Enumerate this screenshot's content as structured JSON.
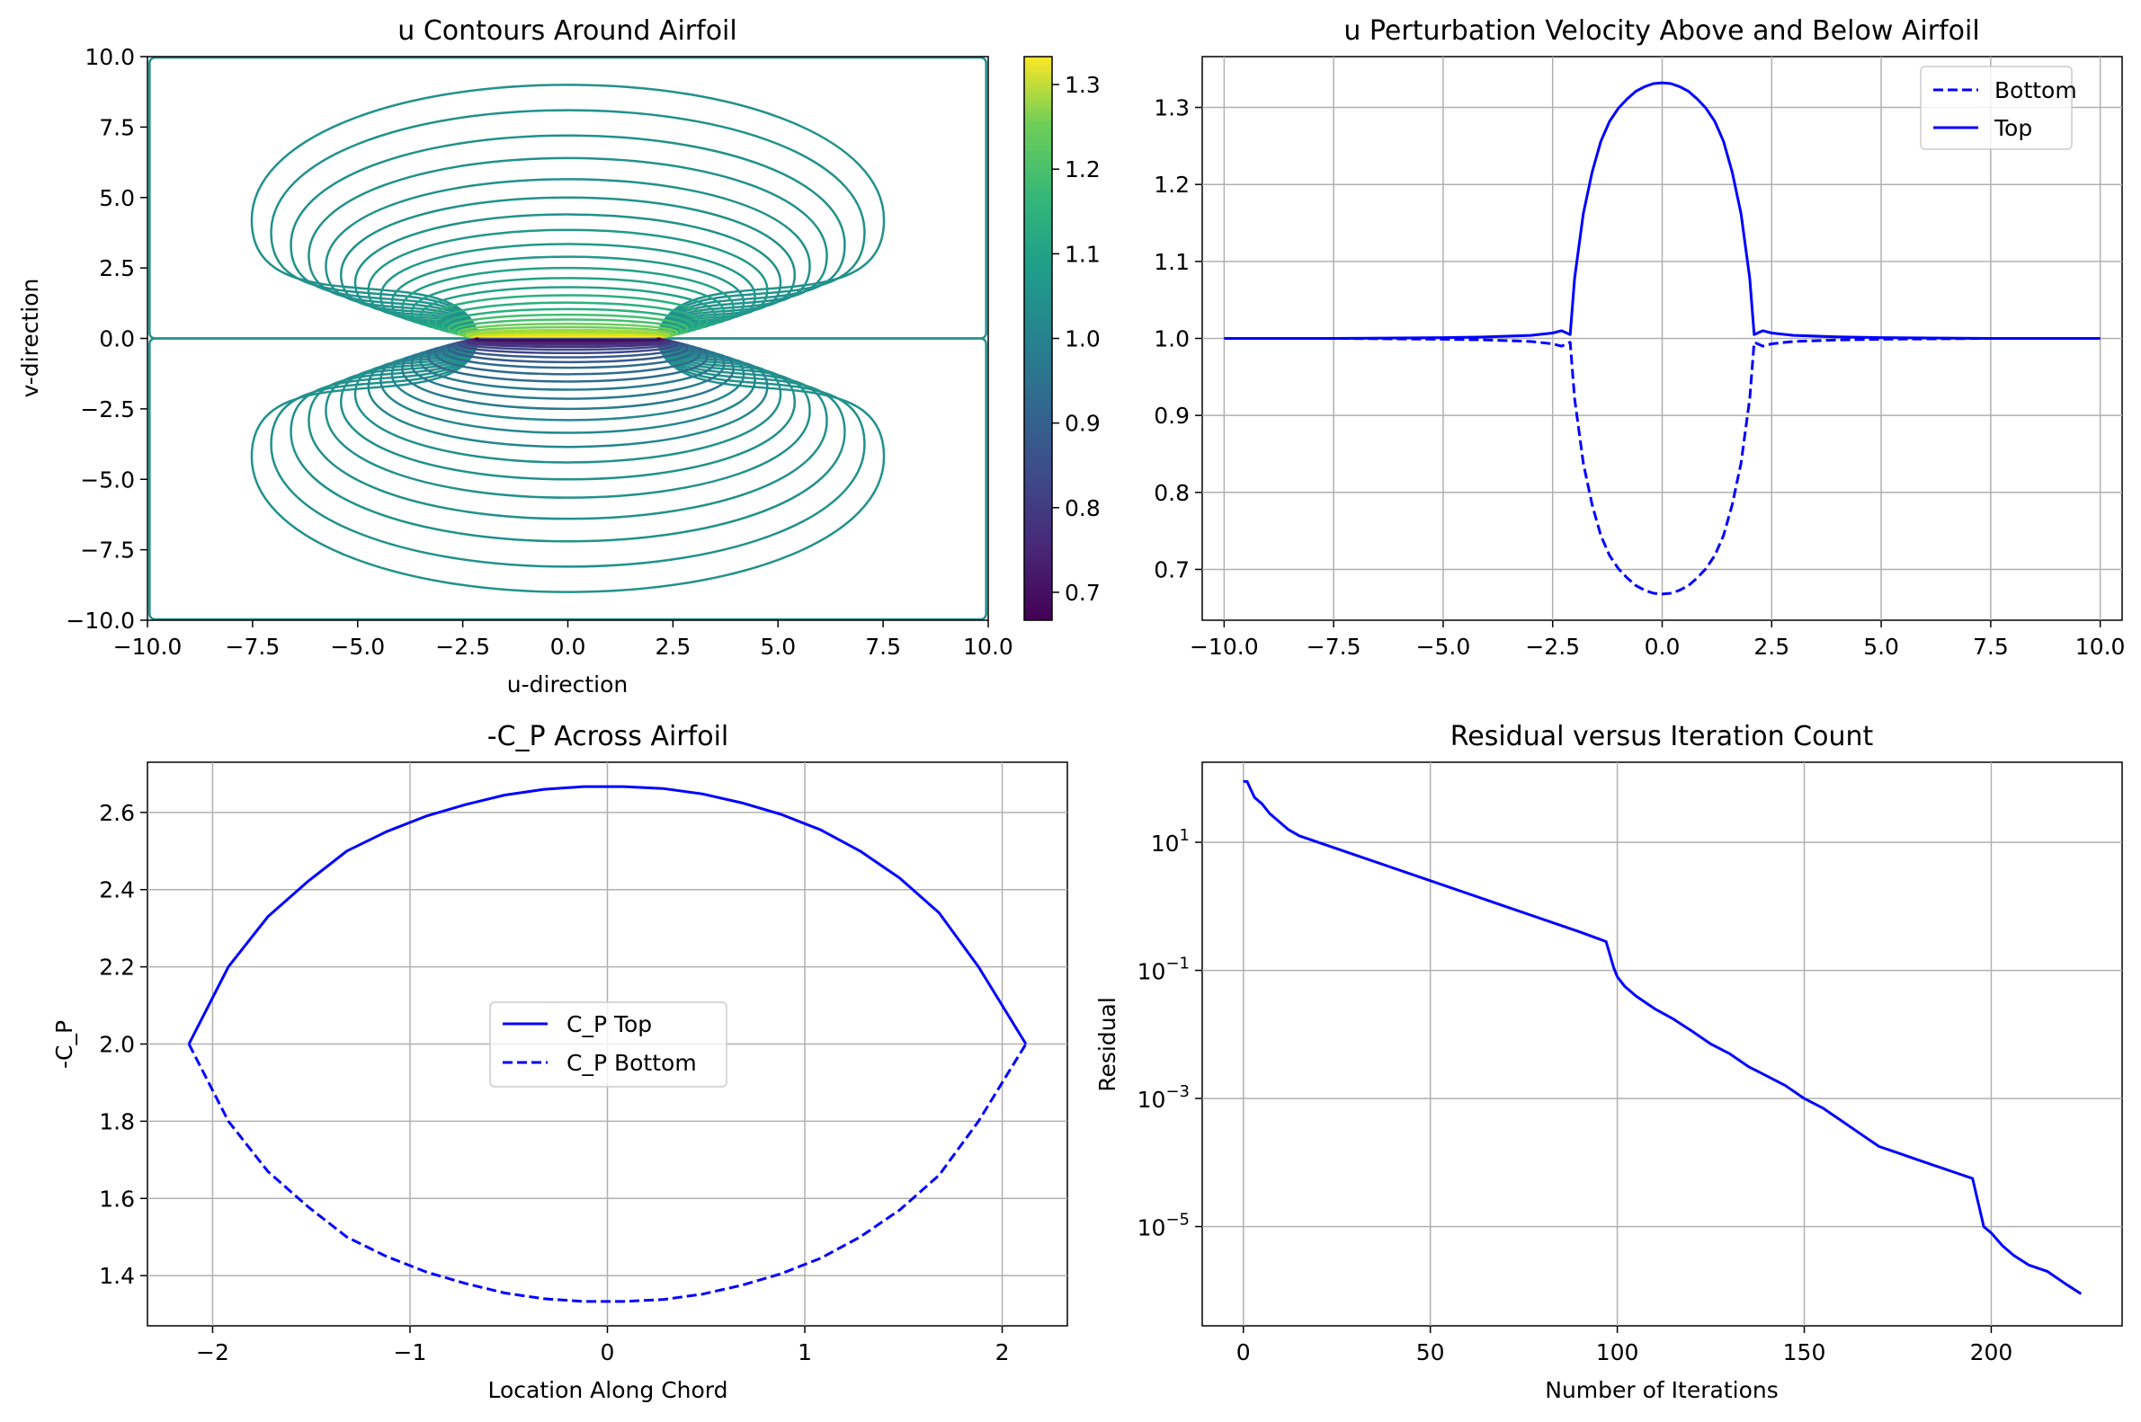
{
  "figure": {
    "panels": [
      {
        "title": "u Contours Around Airfoil",
        "xlabel": "u-direction",
        "ylabel": "v-direction"
      },
      {
        "title": "u Perturbation Velocity Above and Below Airfoil",
        "xlabel": "",
        "ylabel": ""
      },
      {
        "title": "-C_P Across Airfoil",
        "xlabel": "Location Along Chord",
        "ylabel": "-C_P"
      },
      {
        "title": "Residual versus Iteration Count",
        "xlabel": "Number of Iterations",
        "ylabel": "Residual"
      }
    ]
  },
  "chart_data": [
    {
      "type": "contour",
      "title": "u Contours Around Airfoil",
      "xlabel": "u-direction",
      "ylabel": "v-direction",
      "xlim": [
        -10,
        10
      ],
      "ylim": [
        -10,
        10
      ],
      "x_ticks": [
        "−10.0",
        "−7.5",
        "−5.0",
        "−2.5",
        "0.0",
        "2.5",
        "5.0",
        "7.5",
        "10.0"
      ],
      "y_ticks": [
        "−10.0",
        "−7.5",
        "−5.0",
        "−2.5",
        "0.0",
        "2.5",
        "5.0",
        "7.5",
        "10.0"
      ],
      "airfoil_half_chord": 2.12,
      "colormap": "viridis",
      "colorbar": {
        "range": [
          0.667,
          1.333
        ],
        "ticks": [
          "0.7",
          "0.8",
          "0.9",
          "1.0",
          "1.1",
          "1.2",
          "1.3"
        ],
        "tick_values": [
          0.7,
          0.8,
          0.9,
          1.0,
          1.1,
          1.2,
          1.3
        ]
      },
      "upper_loop_heights": [
        9.0,
        8.1,
        7.2,
        6.4,
        5.65,
        5.0,
        4.4,
        3.85,
        3.35,
        2.9,
        2.5,
        2.14,
        1.82,
        1.53,
        1.27,
        1.04,
        0.84,
        0.67,
        0.52,
        0.4,
        0.3,
        0.22,
        0.15,
        0.1,
        0.06,
        0.03
      ]
    },
    {
      "type": "line",
      "title": "u Perturbation Velocity Above and Below Airfoil",
      "xlim": [
        -10.5,
        10.5
      ],
      "ylim": [
        0.634,
        1.366
      ],
      "x_ticks": [
        "−10.0",
        "−7.5",
        "−5.0",
        "−2.5",
        "0.0",
        "2.5",
        "5.0",
        "7.5",
        "10.0"
      ],
      "x_tick_values": [
        -10,
        -7.5,
        -5,
        -2.5,
        0,
        2.5,
        5,
        7.5,
        10
      ],
      "y_ticks": [
        "0.7",
        "0.8",
        "0.9",
        "1.0",
        "1.1",
        "1.2",
        "1.3"
      ],
      "y_tick_values": [
        0.7,
        0.8,
        0.9,
        1.0,
        1.1,
        1.2,
        1.3
      ],
      "grid": true,
      "legend": "upper right",
      "series": [
        {
          "name": "Bottom",
          "style": "dashed",
          "color": "#0000ff",
          "x": [
            -10,
            -7.5,
            -5,
            -4,
            -3,
            -2.5,
            -2.3,
            -2.1,
            -2.0,
            -1.8,
            -1.6,
            -1.4,
            -1.2,
            -1.0,
            -0.8,
            -0.6,
            -0.4,
            -0.2,
            0,
            0.2,
            0.4,
            0.6,
            0.8,
            1.0,
            1.2,
            1.4,
            1.6,
            1.8,
            2.0,
            2.1,
            2.3,
            2.5,
            3,
            4,
            5,
            7.5,
            10
          ],
          "y": [
            1.0,
            1.0,
            0.999,
            0.998,
            0.996,
            0.993,
            0.99,
            0.995,
            0.922,
            0.838,
            0.784,
            0.744,
            0.718,
            0.701,
            0.689,
            0.679,
            0.673,
            0.669,
            0.668,
            0.669,
            0.673,
            0.679,
            0.689,
            0.701,
            0.718,
            0.744,
            0.784,
            0.838,
            0.922,
            0.995,
            0.99,
            0.993,
            0.996,
            0.998,
            0.999,
            1.0,
            1.0
          ]
        },
        {
          "name": "Top",
          "style": "solid",
          "color": "#0000ff",
          "x": [
            -10,
            -7.5,
            -5,
            -4,
            -3,
            -2.5,
            -2.3,
            -2.1,
            -2.0,
            -1.8,
            -1.6,
            -1.4,
            -1.2,
            -1.0,
            -0.8,
            -0.6,
            -0.4,
            -0.2,
            0,
            0.2,
            0.4,
            0.6,
            0.8,
            1.0,
            1.2,
            1.4,
            1.6,
            1.8,
            2.0,
            2.1,
            2.3,
            2.5,
            3,
            4,
            5,
            7.5,
            10
          ],
          "y": [
            1.0,
            1.0,
            1.001,
            1.002,
            1.004,
            1.007,
            1.01,
            1.005,
            1.078,
            1.162,
            1.216,
            1.256,
            1.282,
            1.299,
            1.311,
            1.321,
            1.327,
            1.331,
            1.332,
            1.331,
            1.327,
            1.321,
            1.311,
            1.299,
            1.282,
            1.256,
            1.216,
            1.162,
            1.078,
            1.005,
            1.01,
            1.007,
            1.004,
            1.002,
            1.001,
            1.0,
            1.0
          ]
        }
      ]
    },
    {
      "type": "line",
      "title": "-C_P Across Airfoil",
      "xlabel": "Location Along Chord",
      "ylabel": "-C_P",
      "xlim": [
        -2.33,
        2.33
      ],
      "ylim": [
        1.27,
        2.73
      ],
      "x_ticks": [
        "−2",
        "−1",
        "0",
        "1",
        "2"
      ],
      "x_tick_values": [
        -2,
        -1,
        0,
        1,
        2
      ],
      "y_ticks": [
        "1.4",
        "1.6",
        "1.8",
        "2.0",
        "2.2",
        "2.4",
        "2.6"
      ],
      "y_tick_values": [
        1.4,
        1.6,
        1.8,
        2.0,
        2.2,
        2.4,
        2.6
      ],
      "grid": true,
      "legend": "center",
      "series": [
        {
          "name": "C_P Top",
          "style": "solid",
          "color": "#0000ff",
          "x": [
            -2.12,
            -1.92,
            -1.72,
            -1.52,
            -1.32,
            -1.12,
            -0.92,
            -0.72,
            -0.52,
            -0.32,
            -0.12,
            0.08,
            0.28,
            0.48,
            0.68,
            0.88,
            1.08,
            1.28,
            1.48,
            1.68,
            1.88,
            2.12
          ],
          "y": [
            2.0,
            2.2,
            2.33,
            2.42,
            2.5,
            2.55,
            2.59,
            2.62,
            2.645,
            2.66,
            2.667,
            2.667,
            2.662,
            2.648,
            2.625,
            2.595,
            2.555,
            2.5,
            2.43,
            2.34,
            2.2,
            2.0
          ]
        },
        {
          "name": "C_P Bottom",
          "style": "dashed",
          "color": "#0000ff",
          "x": [
            -2.12,
            -1.92,
            -1.72,
            -1.52,
            -1.32,
            -1.12,
            -0.92,
            -0.72,
            -0.52,
            -0.32,
            -0.12,
            0.08,
            0.28,
            0.48,
            0.68,
            0.88,
            1.08,
            1.28,
            1.48,
            1.68,
            1.88,
            2.12
          ],
          "y": [
            2.0,
            1.8,
            1.67,
            1.58,
            1.5,
            1.45,
            1.41,
            1.38,
            1.355,
            1.34,
            1.333,
            1.333,
            1.338,
            1.352,
            1.375,
            1.405,
            1.445,
            1.5,
            1.57,
            1.66,
            1.8,
            2.0
          ]
        }
      ]
    },
    {
      "type": "line",
      "title": "Residual versus Iteration Count",
      "xlabel": "Number of Iterations",
      "ylabel": "Residual",
      "yscale": "log",
      "xlim": [
        -11,
        235
      ],
      "ylim_log10": [
        -6.55,
        2.25
      ],
      "x_ticks": [
        "0",
        "50",
        "100",
        "150",
        "200"
      ],
      "x_tick_values": [
        0,
        50,
        100,
        150,
        200
      ],
      "y_ticks": [
        {
          "base": "10",
          "exp": "1",
          "value": 1
        },
        {
          "base": "10",
          "exp": "−1",
          "value": -1
        },
        {
          "base": "10",
          "exp": "−3",
          "value": -3
        },
        {
          "base": "10",
          "exp": "−5",
          "value": -5
        }
      ],
      "grid": true,
      "series": [
        {
          "name": "",
          "style": "solid",
          "color": "#0000ff",
          "x": [
            0,
            1,
            2,
            3,
            5,
            7,
            9,
            12,
            15,
            20,
            30,
            50,
            70,
            90,
            97,
            98,
            99,
            100,
            102,
            105,
            110,
            115,
            120,
            125,
            130,
            135,
            140,
            145,
            150,
            155,
            160,
            165,
            170,
            175,
            180,
            185,
            190,
            195,
            196,
            197,
            198,
            200,
            203,
            206,
            210,
            215,
            220,
            224
          ],
          "y": [
            1.95,
            1.95,
            1.82,
            1.7,
            1.6,
            1.45,
            1.35,
            1.2,
            1.1,
            1.0,
            0.8,
            0.4,
            0.0,
            -0.4,
            -0.55,
            -0.75,
            -0.95,
            -1.1,
            -1.25,
            -1.4,
            -1.6,
            -1.76,
            -1.95,
            -2.15,
            -2.3,
            -2.5,
            -2.65,
            -2.8,
            -3.0,
            -3.15,
            -3.35,
            -3.55,
            -3.75,
            -3.85,
            -3.95,
            -4.05,
            -4.15,
            -4.25,
            -4.5,
            -4.75,
            -5.0,
            -5.1,
            -5.3,
            -5.45,
            -5.6,
            -5.7,
            -5.9,
            -6.05
          ]
        }
      ]
    }
  ]
}
